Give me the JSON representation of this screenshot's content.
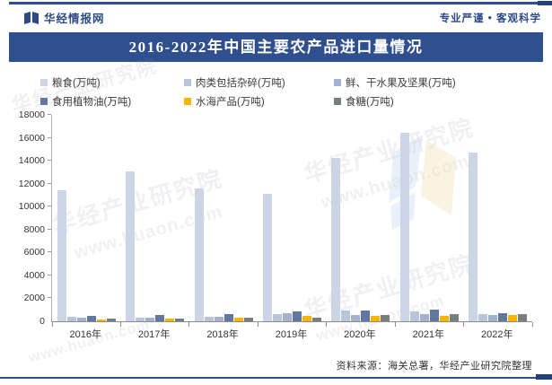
{
  "header": {
    "brand": "华经情报网",
    "tagline": "专业严谨 • 客观科学"
  },
  "title": "2016-2022年中国主要农产品进口量情况",
  "chart_data": {
    "type": "bar",
    "title": "2016-2022年中国主要农产品进口量情况",
    "unit": "万吨",
    "categories": [
      "2016年",
      "2017年",
      "2018年",
      "2019年",
      "2020年",
      "2021年",
      "2022年"
    ],
    "series": [
      {
        "name": "粮食(万吨)",
        "color": "#ccd5e6",
        "values": [
          11468,
          13062,
          11555,
          11144,
          14262,
          16454,
          14687
        ]
      },
      {
        "name": "肉类包括杂碎(万吨)",
        "color": "#b9c5da",
        "values": [
          390,
          340,
          380,
          620,
          980,
          900,
          650
        ]
      },
      {
        "name": "鲜、干水果及坚果(万吨)",
        "color": "#a3b1cc",
        "values": [
          280,
          340,
          430,
          680,
          570,
          630,
          550
        ]
      },
      {
        "name": "食用植物油(万吨)",
        "color": "#60779f",
        "values": [
          500,
          580,
          630,
          900,
          960,
          1000,
          680
        ]
      },
      {
        "name": "水海产品(万吨)",
        "color": "#f7b500",
        "values": [
          180,
          260,
          300,
          460,
          470,
          500,
          520
        ]
      },
      {
        "name": "食糖(万吨)",
        "color": "#75807c",
        "values": [
          270,
          230,
          280,
          340,
          530,
          620,
          600
        ]
      }
    ],
    "ylim": [
      0,
      18000
    ],
    "y_ticks": [
      0,
      2000,
      4000,
      6000,
      8000,
      10000,
      12000,
      14000,
      16000,
      18000
    ],
    "grid": false,
    "legend_position": "top"
  },
  "footer": {
    "source": "资料来源：海关总署，华经产业研究院整理"
  },
  "watermark": {
    "org": "华经产业研究院",
    "site": "www.huaon.com"
  },
  "colors": {
    "navy": "#2f4f8f",
    "navy_dark": "#22407e",
    "text": "#333333"
  }
}
